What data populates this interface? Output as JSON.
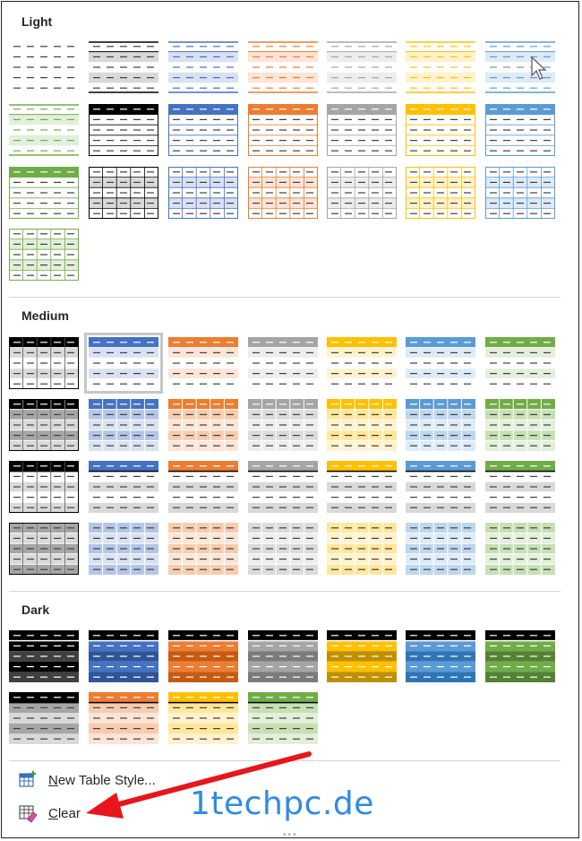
{
  "sections": [
    {
      "title": "Light",
      "rows": [
        [
          "L-none",
          "L-blk",
          "L-blu",
          "L-org",
          "L-gry",
          "L-yel",
          "L-lbl"
        ],
        [
          "L-grn",
          "H-blk",
          "H-blu",
          "H-org",
          "H-gry",
          "H-yel",
          "H-lbl"
        ],
        [
          "H-grn",
          "G-blk",
          "G-blu",
          "G-org",
          "G-gry",
          "G-yel",
          "G-lbl"
        ],
        [
          "G-grn"
        ]
      ]
    },
    {
      "title": "Medium",
      "rows": [
        [
          "M1-blk",
          "M1-blu",
          "M1-org",
          "M1-gry",
          "M1-yel",
          "M1-lbl",
          "M1-grn"
        ],
        [
          "M2-blk",
          "M2-blu",
          "M2-org",
          "M2-gry",
          "M2-yel",
          "M2-lbl",
          "M2-grn"
        ],
        [
          "M3-blk",
          "M3-blu",
          "M3-org",
          "M3-gry",
          "M3-yel",
          "M3-lbl",
          "M3-grn"
        ],
        [
          "M4-blk",
          "M4-blu",
          "M4-org",
          "M4-gry",
          "M4-yel",
          "M4-lbl",
          "M4-grn"
        ]
      ]
    },
    {
      "title": "Dark",
      "rows": [
        [
          "D1-blk",
          "D1-blu",
          "D1-org",
          "D1-gry",
          "D1-yel",
          "D1-lbl",
          "D1-grn"
        ],
        [
          "D2-blk",
          "D2-org",
          "D2-yel",
          "D2-grn"
        ]
      ]
    }
  ],
  "selected_style": "M1-blu",
  "palette": {
    "blk": {
      "main": "#000000",
      "light": "#d9d9d9",
      "mid": "#a6a6a6",
      "dark": "#404040"
    },
    "blu": {
      "main": "#4472c4",
      "light": "#d9e1f2",
      "mid": "#b4c6e7",
      "dark": "#2f5597"
    },
    "org": {
      "main": "#ed7d31",
      "light": "#fce4d6",
      "mid": "#f8cbad",
      "dark": "#c55a11"
    },
    "gry": {
      "main": "#a5a5a5",
      "light": "#ededed",
      "mid": "#dbdbdb",
      "dark": "#7b7b7b"
    },
    "yel": {
      "main": "#ffc000",
      "light": "#fff2cc",
      "mid": "#ffe699",
      "dark": "#bf9000"
    },
    "lbl": {
      "main": "#5b9bd5",
      "light": "#ddebf7",
      "mid": "#bdd7ee",
      "dark": "#2e75b6"
    },
    "grn": {
      "main": "#70ad47",
      "light": "#e2efda",
      "mid": "#c6e0b4",
      "dark": "#548235"
    }
  },
  "footer": {
    "new_style_label": "New Table Style...",
    "clear_label": "Clear"
  },
  "watermark": "1techpc.de",
  "icons": {
    "new_style": "table-add-icon",
    "clear": "table-clear-icon",
    "cursor": "mouse-pointer-icon",
    "annotation": "red-arrow-icon"
  }
}
